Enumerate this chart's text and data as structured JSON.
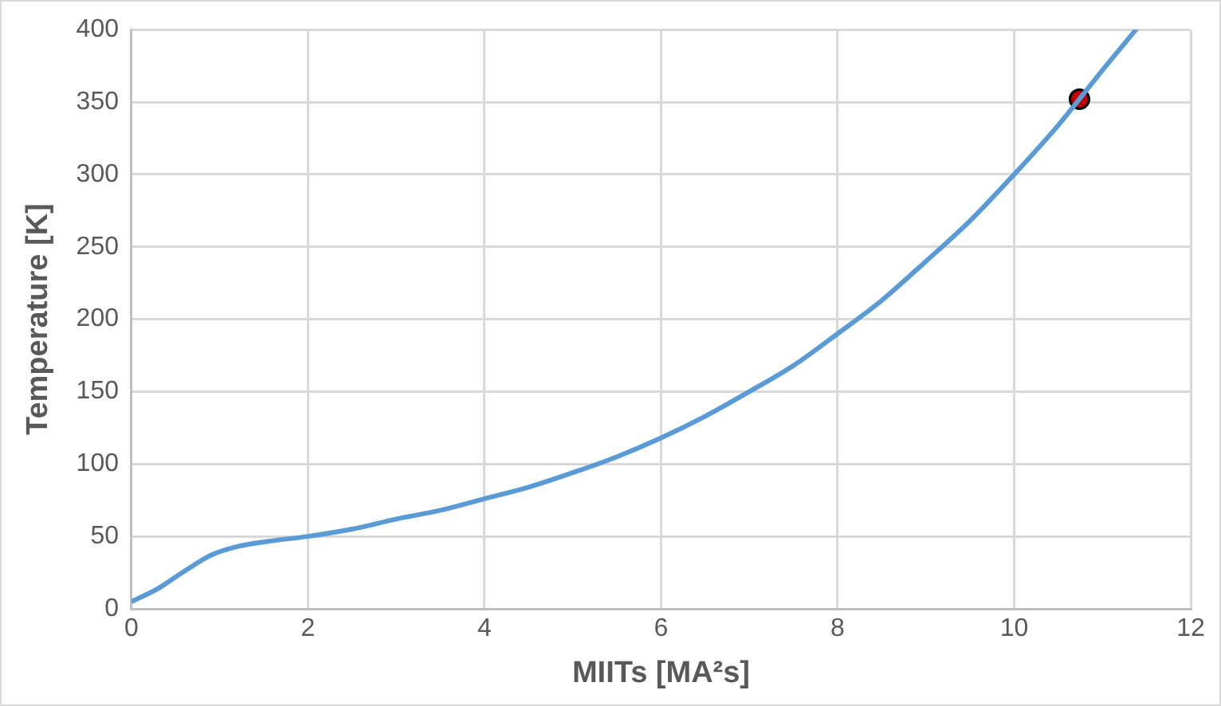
{
  "chart_data": {
    "type": "line",
    "xlabel": "MIITs [MA²s]",
    "ylabel": "Temperature [K]",
    "xlim": [
      0,
      12
    ],
    "xticks": [
      0,
      2,
      4,
      6,
      8,
      10,
      12
    ],
    "ylim": [
      0,
      400
    ],
    "yticks": [
      0,
      50,
      100,
      150,
      200,
      250,
      300,
      350,
      400
    ],
    "grid": true,
    "legend": false,
    "marker": "none",
    "series": [
      {
        "type": "line",
        "color": "#5b9bd5",
        "x": [
          0,
          0.3,
          0.6,
          0.9,
          1.2,
          1.6,
          2,
          2.5,
          3,
          3.5,
          4,
          4.5,
          5,
          5.5,
          6,
          6.5,
          7,
          7.5,
          8,
          8.5,
          9,
          9.5,
          10,
          10.5,
          11,
          11.38
        ],
        "values": [
          5,
          14,
          26,
          37,
          43,
          47,
          50,
          55,
          62,
          68,
          76,
          84,
          94,
          105,
          118,
          133,
          150,
          168,
          190,
          213,
          240,
          268,
          300,
          334,
          372,
          400
        ]
      },
      {
        "type": "scatter",
        "color": "#c00000",
        "marker": "circle",
        "x": [
          10.74
        ],
        "values": [
          352
        ]
      }
    ]
  }
}
